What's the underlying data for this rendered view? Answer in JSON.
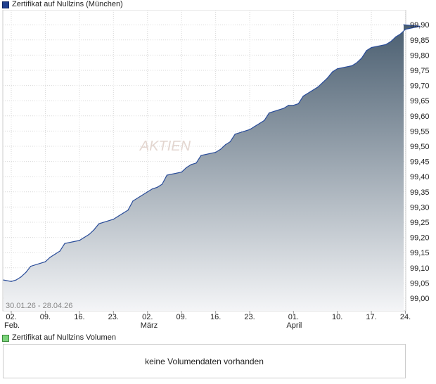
{
  "legend_main": "Zertifikat auf Nullzins (München)",
  "legend_volume": "Zertifikat auf Nullzins Volumen",
  "volume_message": "keine Volumendaten vorhanden",
  "date_range": "30.01.26 - 28.04.26",
  "watermark": "AKTIEN",
  "colors": {
    "line": "#2a4d9a",
    "area_top": "#4a5e70",
    "area_bottom": "#f4f5f7",
    "grid": "#d9d9d9",
    "legend_main": "#1f3f8f",
    "legend_volume": "#7bd37b"
  },
  "chart_data": {
    "type": "area",
    "xlabel": "",
    "ylabel": "",
    "ylim": [
      98.96,
      99.92
    ],
    "yticks": [
      "99,90",
      "99,85",
      "99,80",
      "99,75",
      "99,70",
      "99,65",
      "99,60",
      "99,55",
      "99,50",
      "99,45",
      "99,40",
      "99,35",
      "99,30",
      "99,25",
      "99,20",
      "99,15",
      "99,10",
      "99,05",
      "99,00"
    ],
    "xticks": [
      {
        "day": "02.",
        "month": "Feb.",
        "date": "2026-02-02"
      },
      {
        "day": "09.",
        "month": "",
        "date": "2026-02-09"
      },
      {
        "day": "16.",
        "month": "",
        "date": "2026-02-16"
      },
      {
        "day": "23.",
        "month": "",
        "date": "2026-02-23"
      },
      {
        "day": "02.",
        "month": "März",
        "date": "2026-03-02"
      },
      {
        "day": "09.",
        "month": "",
        "date": "2026-03-09"
      },
      {
        "day": "16.",
        "month": "",
        "date": "2026-03-16"
      },
      {
        "day": "23.",
        "month": "",
        "date": "2026-03-23"
      },
      {
        "day": "01.",
        "month": "April",
        "date": "2026-04-01"
      },
      {
        "day": "10.",
        "month": "",
        "date": "2026-04-10"
      },
      {
        "day": "17.",
        "month": "",
        "date": "2026-04-17"
      },
      {
        "day": "24.",
        "month": "",
        "date": "2026-04-24"
      }
    ],
    "x": [
      "2026-01-30",
      "2026-02-02",
      "2026-02-03",
      "2026-02-04",
      "2026-02-05",
      "2026-02-06",
      "2026-02-09",
      "2026-02-10",
      "2026-02-11",
      "2026-02-12",
      "2026-02-13",
      "2026-02-16",
      "2026-02-17",
      "2026-02-18",
      "2026-02-19",
      "2026-02-20",
      "2026-02-23",
      "2026-02-24",
      "2026-02-25",
      "2026-02-26",
      "2026-02-27",
      "2026-03-02",
      "2026-03-03",
      "2026-03-04",
      "2026-03-05",
      "2026-03-06",
      "2026-03-09",
      "2026-03-10",
      "2026-03-11",
      "2026-03-12",
      "2026-03-13",
      "2026-03-16",
      "2026-03-17",
      "2026-03-18",
      "2026-03-19",
      "2026-03-20",
      "2026-03-23",
      "2026-03-24",
      "2026-03-25",
      "2026-03-26",
      "2026-03-27",
      "2026-03-30",
      "2026-03-31",
      "2026-04-01",
      "2026-04-02",
      "2026-04-03",
      "2026-04-06",
      "2026-04-07",
      "2026-04-08",
      "2026-04-09",
      "2026-04-10",
      "2026-04-13",
      "2026-04-14",
      "2026-04-15",
      "2026-04-16",
      "2026-04-17",
      "2026-04-20",
      "2026-04-21",
      "2026-04-22",
      "2026-04-23",
      "2026-04-24",
      "2026-04-27",
      "2026-04-28"
    ],
    "series": [
      {
        "values": [
          99.06,
          99.055,
          99.06,
          99.07,
          99.085,
          99.105,
          99.12,
          99.135,
          99.145,
          99.155,
          99.18,
          99.19,
          99.2,
          99.21,
          99.225,
          99.245,
          99.26,
          99.27,
          99.28,
          99.29,
          99.32,
          99.35,
          99.36,
          99.365,
          99.375,
          99.405,
          99.415,
          99.43,
          99.44,
          99.445,
          99.47,
          99.48,
          99.49,
          99.505,
          99.515,
          99.54,
          99.555,
          99.565,
          99.575,
          99.585,
          99.61,
          99.625,
          99.635,
          99.635,
          99.64,
          99.665,
          99.695,
          99.71,
          99.725,
          99.745,
          99.755,
          99.765,
          99.775,
          99.79,
          99.815,
          99.825,
          99.835,
          99.845,
          99.86,
          99.87,
          99.885,
          99.895,
          99.9
        ]
      }
    ]
  }
}
